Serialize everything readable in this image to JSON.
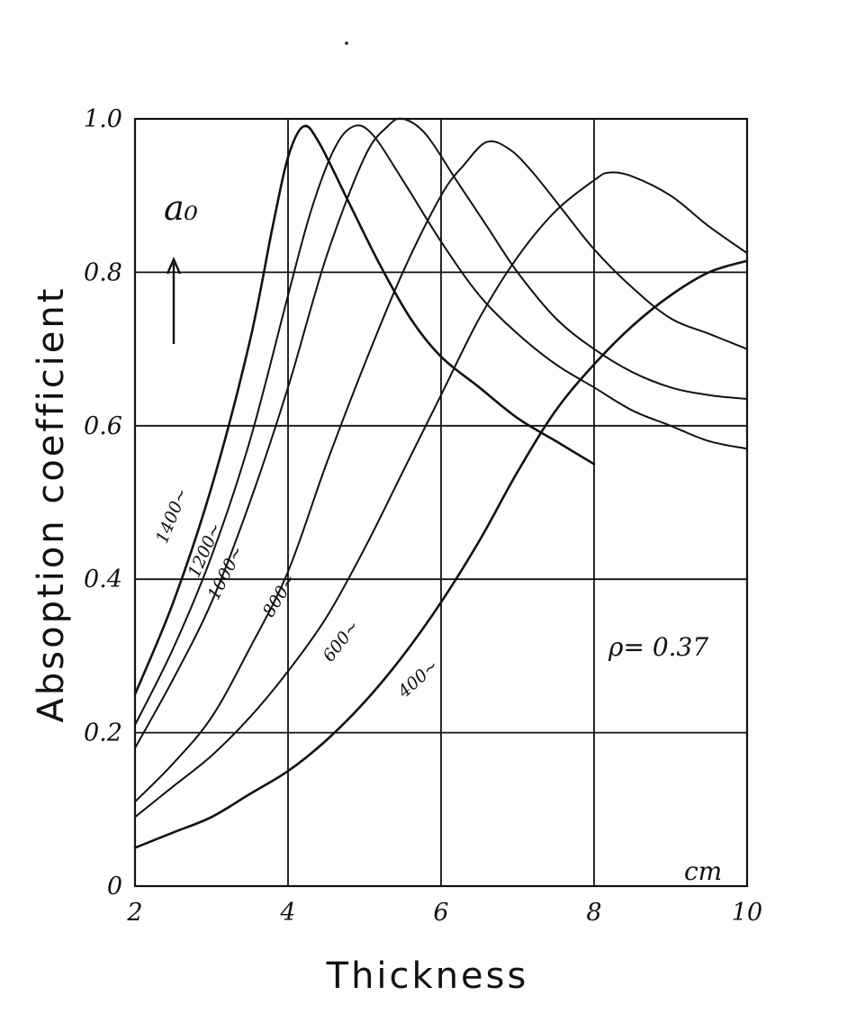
{
  "chart_data": {
    "type": "line",
    "title": "",
    "xlabel": "Thickness",
    "ylabel": "Absoption coefficient",
    "x_unit": "cm",
    "y_symbol": "a₀",
    "annotation": "ρ= 0.37",
    "xlim": [
      2,
      10
    ],
    "ylim": [
      0,
      1.0
    ],
    "x_ticks": [
      2,
      4,
      6,
      8,
      10
    ],
    "y_ticks": [
      0,
      0.2,
      0.4,
      0.6,
      0.8,
      1.0
    ],
    "x_tick_labels": [
      "2",
      "4",
      "6",
      "8",
      "10"
    ],
    "y_tick_labels": [
      "0",
      "0.2",
      "0.4",
      "0.6",
      "0.8",
      "1.0"
    ],
    "grid": true,
    "series": [
      {
        "name": "1400~",
        "x": [
          2.0,
          2.5,
          3.0,
          3.5,
          3.8,
          4.0,
          4.2,
          4.4,
          4.8,
          5.2,
          5.6,
          6.0,
          6.5,
          7.0,
          7.5,
          8.0
        ],
        "y": [
          0.25,
          0.37,
          0.52,
          0.71,
          0.86,
          0.95,
          0.99,
          0.97,
          0.89,
          0.81,
          0.74,
          0.69,
          0.65,
          0.61,
          0.58,
          0.55
        ]
      },
      {
        "name": "1200~",
        "x": [
          2.0,
          2.5,
          3.0,
          3.5,
          4.0,
          4.3,
          4.6,
          4.85,
          5.1,
          5.5,
          6.0,
          6.5,
          7.0,
          7.5,
          8.0,
          8.5,
          9.0,
          9.5,
          10.0
        ],
        "y": [
          0.21,
          0.31,
          0.43,
          0.58,
          0.77,
          0.88,
          0.96,
          0.99,
          0.98,
          0.92,
          0.84,
          0.77,
          0.72,
          0.68,
          0.65,
          0.62,
          0.6,
          0.58,
          0.57
        ]
      },
      {
        "name": "1000~",
        "x": [
          2.0,
          2.5,
          3.0,
          3.5,
          4.0,
          4.5,
          5.0,
          5.3,
          5.5,
          5.8,
          6.2,
          6.6,
          7.0,
          7.5,
          8.0,
          8.5,
          9.0,
          9.5,
          10.0
        ],
        "y": [
          0.18,
          0.27,
          0.37,
          0.5,
          0.65,
          0.82,
          0.95,
          0.99,
          1.0,
          0.98,
          0.92,
          0.86,
          0.8,
          0.74,
          0.7,
          0.67,
          0.65,
          0.64,
          0.635
        ]
      },
      {
        "name": "800~",
        "x": [
          2.0,
          2.5,
          3.0,
          3.5,
          4.0,
          4.5,
          5.0,
          5.5,
          6.0,
          6.3,
          6.6,
          6.9,
          7.2,
          7.6,
          8.0,
          8.5,
          9.0,
          9.5,
          10.0
        ],
        "y": [
          0.11,
          0.16,
          0.22,
          0.31,
          0.41,
          0.55,
          0.68,
          0.8,
          0.9,
          0.94,
          0.97,
          0.96,
          0.93,
          0.88,
          0.83,
          0.78,
          0.74,
          0.72,
          0.7
        ]
      },
      {
        "name": "600~",
        "x": [
          2.0,
          2.5,
          3.0,
          3.5,
          4.0,
          4.5,
          5.0,
          5.5,
          6.0,
          6.5,
          7.0,
          7.5,
          8.0,
          8.2,
          8.5,
          9.0,
          9.5,
          10.0
        ],
        "y": [
          0.09,
          0.13,
          0.17,
          0.22,
          0.28,
          0.35,
          0.44,
          0.54,
          0.64,
          0.74,
          0.82,
          0.88,
          0.92,
          0.93,
          0.925,
          0.9,
          0.86,
          0.825
        ]
      },
      {
        "name": "400~",
        "x": [
          2.0,
          2.5,
          3.0,
          3.5,
          4.0,
          4.5,
          5.0,
          5.5,
          6.0,
          6.5,
          7.0,
          7.5,
          8.0,
          8.5,
          9.0,
          9.5,
          10.0
        ],
        "y": [
          0.05,
          0.07,
          0.09,
          0.12,
          0.15,
          0.19,
          0.24,
          0.3,
          0.37,
          0.45,
          0.54,
          0.62,
          0.68,
          0.73,
          0.77,
          0.8,
          0.815
        ]
      }
    ]
  }
}
